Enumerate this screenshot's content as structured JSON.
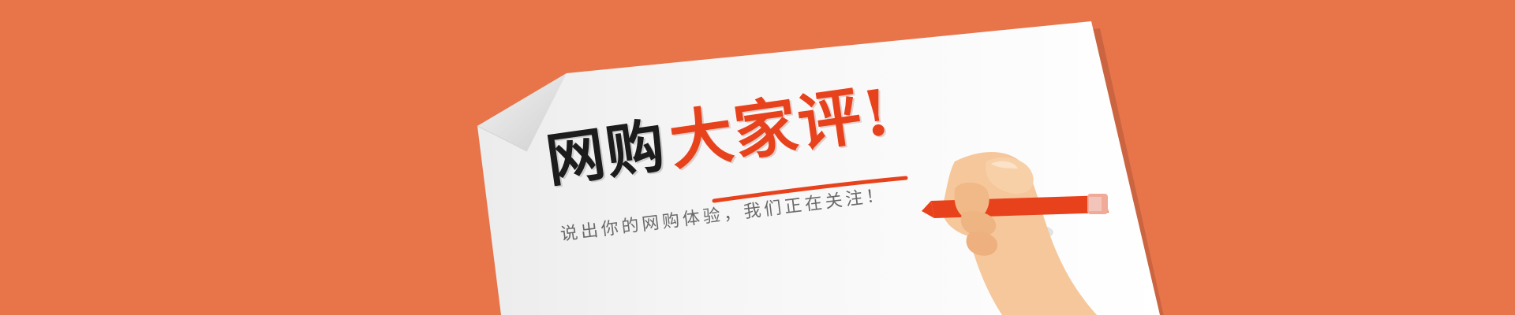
{
  "banner": {
    "background_color": "#e8744a",
    "accent_color": "#e8421c",
    "headline_black": "网购",
    "headline_orange": "大家评!",
    "subheadline": "说出你的网购体验，我们正在关注！",
    "illustration": [
      "curled-paper-sheet",
      "hand-holding-crayon-icon"
    ]
  }
}
